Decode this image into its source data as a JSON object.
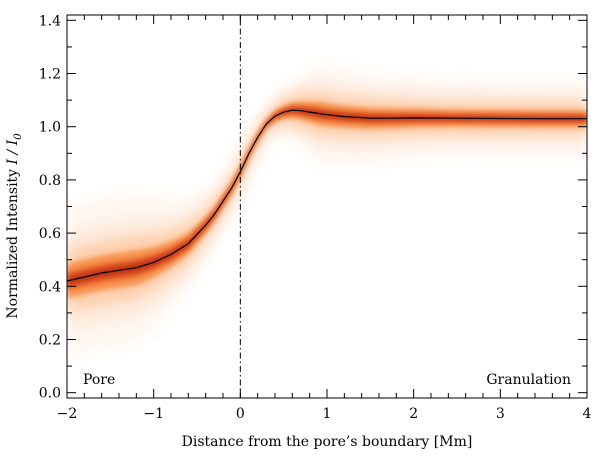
{
  "chart_data": {
    "type": "line",
    "title": "",
    "xlabel": "Distance from the pore’s boundary   [Mm]",
    "ylabel_prefix": "Normalized Intensity   ",
    "ylabel_symbol": "I / I",
    "ylabel_subscript": "0",
    "xlim": [
      -2,
      4
    ],
    "ylim": [
      -0.02,
      1.42
    ],
    "x_ticks": [
      -2,
      -1,
      0,
      1,
      2,
      3,
      4
    ],
    "x_tick_labels": [
      "−2",
      "−1",
      "0",
      "1",
      "2",
      "3",
      "4"
    ],
    "y_ticks": [
      0.0,
      0.2,
      0.4,
      0.6,
      0.8,
      1.0,
      1.2,
      1.4
    ],
    "y_tick_labels": [
      "0.0",
      "0.2",
      "0.4",
      "0.6",
      "0.8",
      "1.0",
      "1.2",
      "1.4"
    ],
    "boundary_line_x": 0,
    "annotations": {
      "left": "Pore",
      "right": "Granulation"
    },
    "series": [
      {
        "name": "mean intensity profile",
        "color": "#000000",
        "x": [
          -2.0,
          -1.8,
          -1.6,
          -1.4,
          -1.2,
          -1.0,
          -0.8,
          -0.6,
          -0.4,
          -0.3,
          -0.2,
          -0.1,
          0.0,
          0.1,
          0.2,
          0.3,
          0.4,
          0.5,
          0.6,
          0.7,
          0.8,
          1.0,
          1.2,
          1.5,
          1.8,
          2.0,
          2.5,
          3.0,
          3.5,
          4.0
        ],
        "y": [
          0.42,
          0.435,
          0.45,
          0.46,
          0.47,
          0.49,
          0.52,
          0.56,
          0.63,
          0.67,
          0.72,
          0.77,
          0.83,
          0.9,
          0.96,
          1.01,
          1.04,
          1.055,
          1.062,
          1.06,
          1.055,
          1.045,
          1.038,
          1.032,
          1.032,
          1.033,
          1.032,
          1.031,
          1.03,
          1.03
        ]
      }
    ],
    "density": {
      "colormap": [
        "#ffffff",
        "#fde4cf",
        "#fbb98a",
        "#f57c29",
        "#dc3f10",
        "#8b0d0d"
      ],
      "description": "2D histogram of intensity vs distance"
    }
  }
}
